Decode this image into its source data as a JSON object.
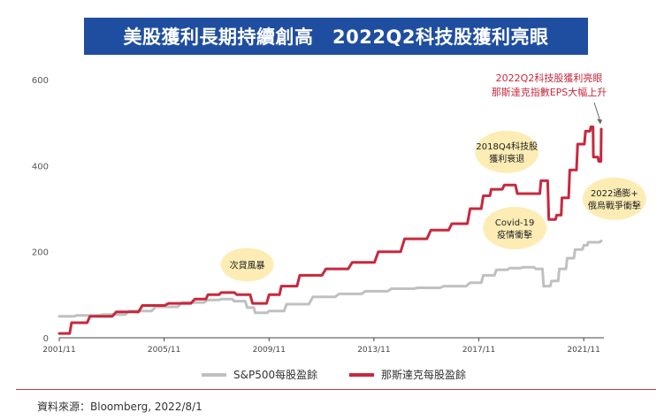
{
  "title": "美股獲利長期持續創高　2022Q2科技股獲利亮眼",
  "source": "資料來源：Bloomberg, 2022/8/1",
  "colors": {
    "title_bg": "#1f4ea1",
    "sp500": "#c0c0c0",
    "nasdaq": "#c8283c",
    "bubble": "#fdedb5",
    "highlight": "#c8283c"
  },
  "chart_data": {
    "type": "line",
    "title": "美股獲利長期持續創高　2022Q2科技股獲利亮眼",
    "x_tick_labels": [
      "2001/11",
      "2005/11",
      "2009/11",
      "2013/11",
      "2017/11",
      "2021/11"
    ],
    "x_ticks": [
      2001.83,
      2005.83,
      2009.83,
      2013.83,
      2017.83,
      2021.83
    ],
    "xlim": [
      2001.83,
      2022.6
    ],
    "ylim": [
      0,
      600
    ],
    "y_ticks": [
      0,
      200,
      400,
      600
    ],
    "grid": false,
    "legend": "bottom",
    "series": [
      {
        "name": "S&P500每股盈餘",
        "x": [
          2001.83,
          2002.5,
          2003.5,
          2004.5,
          2005.5,
          2006.5,
          2007.5,
          2008.0,
          2008.5,
          2009.0,
          2009.3,
          2009.83,
          2010.5,
          2011.5,
          2012.5,
          2013.5,
          2014.5,
          2015.5,
          2016.5,
          2017.5,
          2018.0,
          2018.5,
          2019.0,
          2019.5,
          2020.0,
          2020.3,
          2020.6,
          2020.9,
          2021.2,
          2021.5,
          2021.83,
          2022.0,
          2022.5
        ],
        "values": [
          50,
          52,
          54,
          62,
          72,
          82,
          88,
          90,
          85,
          70,
          58,
          62,
          78,
          95,
          102,
          108,
          114,
          116,
          120,
          128,
          145,
          158,
          162,
          164,
          160,
          120,
          132,
          160,
          185,
          205,
          215,
          222,
          225
        ]
      },
      {
        "name": "那斯達克每股盈餘",
        "x": [
          2001.83,
          2002.3,
          2003.0,
          2004.0,
          2005.0,
          2006.0,
          2007.0,
          2007.5,
          2008.0,
          2008.6,
          2009.2,
          2009.83,
          2010.3,
          2011.0,
          2012.0,
          2013.0,
          2014.0,
          2015.0,
          2016.0,
          2016.8,
          2017.5,
          2018.0,
          2018.3,
          2018.8,
          2019.3,
          2019.9,
          2020.2,
          2020.5,
          2020.8,
          2021.0,
          2021.3,
          2021.6,
          2021.9,
          2022.1,
          2022.2,
          2022.4,
          2022.5
        ],
        "values": [
          10,
          35,
          50,
          60,
          75,
          80,
          90,
          100,
          105,
          100,
          80,
          100,
          120,
          145,
          160,
          175,
          200,
          230,
          250,
          265,
          300,
          330,
          345,
          355,
          335,
          335,
          365,
          275,
          285,
          325,
          390,
          450,
          480,
          490,
          420,
          410,
          485
        ]
      }
    ],
    "annotations": [
      {
        "text": [
          "次貸風暴"
        ],
        "x": 2009.0,
        "y": 170
      },
      {
        "text": [
          "2018Q4科技股",
          "獲利衰退"
        ],
        "x": 2018.9,
        "y": 432
      },
      {
        "text": [
          "Covid-19",
          "疫情衝擊"
        ],
        "x": 2019.2,
        "y": 255
      },
      {
        "text": [
          "2022通膨+",
          "俄烏戰爭衝擊"
        ],
        "x": 2023.0,
        "y": 323
      }
    ],
    "highlight": {
      "text": [
        "2022Q2科技股獲利亮眼",
        "那斯達克指數EPS大幅上升"
      ],
      "x": 2022.5,
      "y": 490
    }
  }
}
